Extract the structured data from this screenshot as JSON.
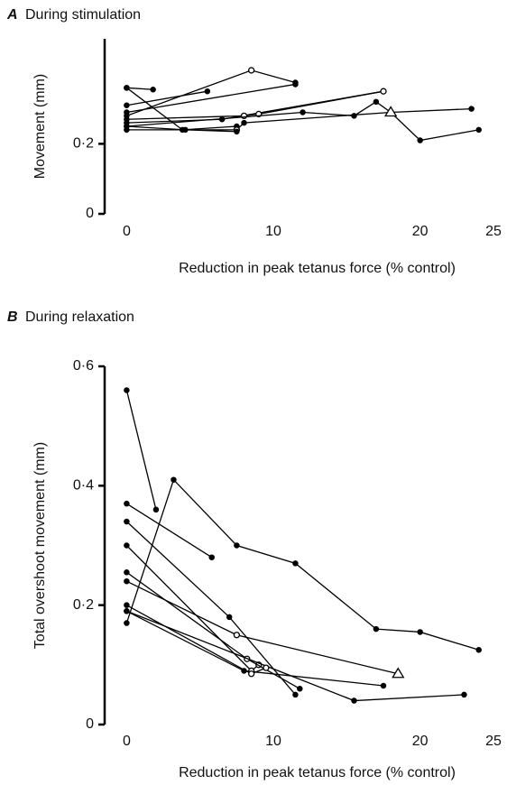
{
  "chart_data": [
    {
      "type": "line",
      "panel": "A",
      "title": "During stimulation",
      "ylabel": "Movement (mm)",
      "xlabel": "Reduction in peak tetanus force (% control)",
      "xlim": [
        -1.5,
        25
      ],
      "ylim": [
        0,
        0.5
      ],
      "xticks": [
        0,
        10,
        20,
        25
      ],
      "yticks": [
        0,
        {
          "value": 0.2,
          "label": "0·2"
        }
      ],
      "color": "#000000",
      "series": [
        {
          "x": [
            0,
            1.8
          ],
          "values": [
            0.36,
            0.355
          ],
          "markers": [
            "filled",
            "filled"
          ]
        },
        {
          "x": [
            0,
            3.8,
            7.5
          ],
          "values": [
            0.36,
            0.24,
            0.25
          ],
          "markers": [
            "filled",
            "filled",
            "filled"
          ]
        },
        {
          "x": [
            0,
            5.5
          ],
          "values": [
            0.31,
            0.35
          ],
          "markers": [
            "filled",
            "filled"
          ]
        },
        {
          "x": [
            0,
            8.5,
            11.5
          ],
          "values": [
            0.28,
            0.41,
            0.375
          ],
          "markers": [
            "filled",
            "open",
            "filled"
          ]
        },
        {
          "x": [
            0,
            11.5
          ],
          "values": [
            0.29,
            0.37
          ],
          "markers": [
            "filled",
            "filled"
          ]
        },
        {
          "x": [
            0,
            6.5,
            17.5
          ],
          "values": [
            0.26,
            0.27,
            0.35
          ],
          "markers": [
            "filled",
            "filled",
            "filled"
          ]
        },
        {
          "x": [
            0,
            8,
            9,
            17.5
          ],
          "values": [
            0.27,
            0.28,
            0.285,
            0.35
          ],
          "markers": [
            "filled",
            "open",
            "open",
            "open"
          ]
        },
        {
          "x": [
            0,
            12,
            15.5,
            17,
            18,
            20,
            24
          ],
          "values": [
            0.25,
            0.29,
            0.28,
            0.32,
            0.29,
            0.21,
            0.24
          ],
          "markers": [
            "filled",
            "filled",
            "filled",
            "filled",
            "filled",
            "filled",
            "filled"
          ]
        },
        {
          "x": [
            0,
            7.5,
            8,
            18,
            23.5
          ],
          "values": [
            0.24,
            0.24,
            0.26,
            0.29,
            0.3
          ],
          "markers": [
            "filled",
            "open",
            "filled",
            "triangle",
            "filled"
          ]
        },
        {
          "x": [
            0,
            4,
            7.5
          ],
          "values": [
            0.25,
            0.24,
            0.235
          ],
          "markers": [
            "filled",
            "filled",
            "filled"
          ]
        }
      ]
    },
    {
      "type": "line",
      "panel": "B",
      "title": "During relaxation",
      "ylabel": "Total overshoot movement (mm)",
      "xlabel": "Reduction in peak tetanus force (% control)",
      "xlim": [
        -1.5,
        25
      ],
      "ylim": [
        0,
        0.6
      ],
      "xticks": [
        0,
        10,
        20,
        25
      ],
      "yticks": [
        0,
        {
          "value": 0.2,
          "label": "0·2"
        },
        {
          "value": 0.4,
          "label": "0·4"
        },
        {
          "value": 0.6,
          "label": "0·6"
        }
      ],
      "color": "#000000",
      "series": [
        {
          "x": [
            0,
            2
          ],
          "values": [
            0.56,
            0.36
          ],
          "markers": [
            "filled",
            "filled"
          ]
        },
        {
          "x": [
            0,
            3.2,
            7.5,
            11.5,
            17,
            20,
            24
          ],
          "values": [
            0.17,
            0.41,
            0.3,
            0.27,
            0.16,
            0.155,
            0.125
          ],
          "markers": [
            "filled",
            "filled",
            "filled",
            "filled",
            "filled",
            "filled",
            "filled"
          ]
        },
        {
          "x": [
            0,
            5.8
          ],
          "values": [
            0.37,
            0.28
          ],
          "markers": [
            "filled",
            "filled"
          ]
        },
        {
          "x": [
            0,
            7,
            11.5
          ],
          "values": [
            0.34,
            0.18,
            0.05
          ],
          "markers": [
            "filled",
            "filled",
            "filled"
          ]
        },
        {
          "x": [
            0,
            8.5,
            9
          ],
          "values": [
            0.3,
            0.09,
            0.1
          ],
          "markers": [
            "filled",
            "open",
            "open"
          ]
        },
        {
          "x": [
            0,
            8.2,
            11.8
          ],
          "values": [
            0.255,
            0.11,
            0.06
          ],
          "markers": [
            "filled",
            "open",
            "filled"
          ]
        },
        {
          "x": [
            0,
            7.5,
            18.5
          ],
          "values": [
            0.24,
            0.15,
            0.085
          ],
          "markers": [
            "filled",
            "open",
            "triangle"
          ]
        },
        {
          "x": [
            0,
            15.5,
            23
          ],
          "values": [
            0.19,
            0.04,
            0.05
          ],
          "markers": [
            "filled",
            "filled",
            "filled"
          ]
        },
        {
          "x": [
            0,
            8,
            17.5
          ],
          "values": [
            0.19,
            0.09,
            0.065
          ],
          "markers": [
            "filled",
            "filled",
            "filled"
          ]
        },
        {
          "x": [
            0,
            8.5,
            9.5
          ],
          "values": [
            0.2,
            0.085,
            0.095
          ],
          "markers": [
            "filled",
            "open",
            "open"
          ]
        }
      ]
    }
  ]
}
